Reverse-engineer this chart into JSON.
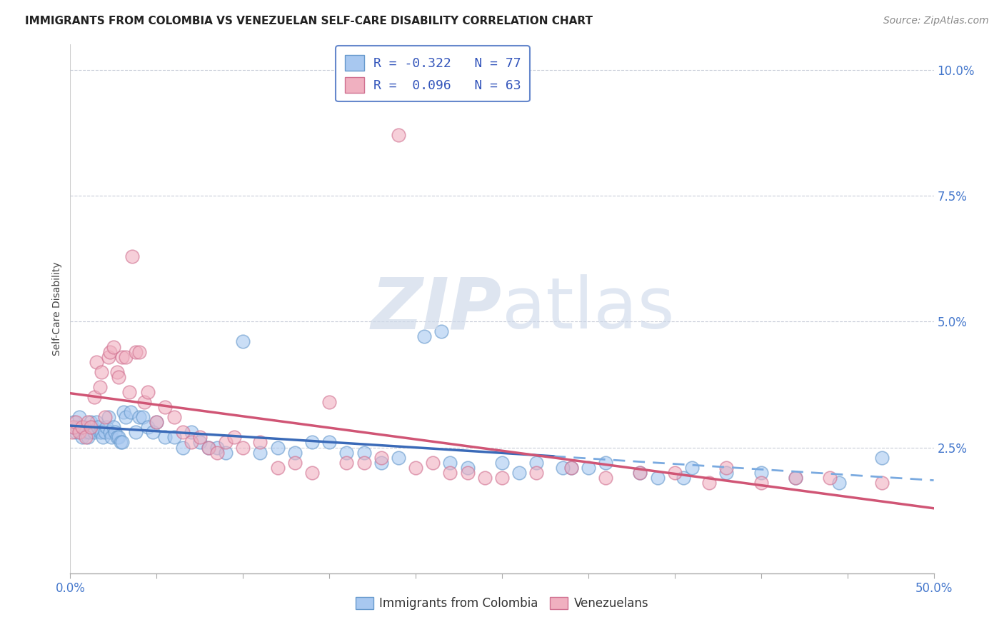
{
  "title": "IMMIGRANTS FROM COLOMBIA VS VENEZUELAN SELF-CARE DISABILITY CORRELATION CHART",
  "source": "Source: ZipAtlas.com",
  "ylabel": "Self-Care Disability",
  "legend_blue_R": -0.322,
  "legend_blue_N": 77,
  "legend_blue_label": "Immigrants from Colombia",
  "legend_pink_R": 0.096,
  "legend_pink_N": 63,
  "legend_pink_label": "Venezuelans",
  "blue_face": "#a8c8f0",
  "blue_edge": "#6699cc",
  "pink_face": "#f0b0c0",
  "pink_edge": "#d07090",
  "blue_line": "#3a6ab8",
  "pink_line": "#d05575",
  "blue_dash": "#7aaae0",
  "watermark_color": "#d0daea",
  "background": "#ffffff",
  "xlim": [
    0,
    50
  ],
  "ylim": [
    0,
    10.5
  ],
  "blue_x": [
    0.1,
    0.2,
    0.3,
    0.4,
    0.5,
    0.6,
    0.7,
    0.8,
    0.9,
    1.0,
    1.1,
    1.2,
    1.3,
    1.4,
    1.5,
    1.6,
    1.7,
    1.8,
    1.9,
    2.0,
    2.1,
    2.2,
    2.3,
    2.4,
    2.5,
    2.6,
    2.7,
    2.8,
    2.9,
    3.0,
    3.1,
    3.2,
    3.5,
    3.8,
    4.0,
    4.2,
    4.5,
    4.8,
    5.0,
    5.5,
    6.0,
    6.5,
    7.0,
    7.5,
    8.0,
    8.5,
    9.0,
    10.0,
    11.0,
    12.0,
    13.0,
    14.0,
    15.0,
    16.0,
    17.0,
    18.0,
    19.0,
    20.5,
    21.5,
    22.0,
    23.0,
    25.0,
    27.0,
    30.0,
    33.0,
    35.5,
    38.0,
    40.0,
    42.0,
    44.5,
    47.0,
    29.0,
    31.0,
    36.0,
    26.0,
    28.5,
    34.0
  ],
  "blue_y": [
    2.9,
    3.0,
    2.8,
    2.9,
    3.1,
    2.8,
    2.7,
    2.9,
    2.8,
    2.7,
    2.8,
    3.0,
    2.9,
    2.8,
    3.0,
    2.9,
    2.8,
    2.8,
    2.7,
    2.8,
    2.9,
    3.1,
    2.8,
    2.7,
    2.9,
    2.8,
    2.7,
    2.7,
    2.6,
    2.6,
    3.2,
    3.1,
    3.2,
    2.8,
    3.1,
    3.1,
    2.9,
    2.8,
    3.0,
    2.7,
    2.7,
    2.5,
    2.8,
    2.6,
    2.5,
    2.5,
    2.4,
    4.6,
    2.4,
    2.5,
    2.4,
    2.6,
    2.6,
    2.4,
    2.4,
    2.2,
    2.3,
    4.7,
    4.8,
    2.2,
    2.1,
    2.2,
    2.2,
    2.1,
    2.0,
    1.9,
    2.0,
    2.0,
    1.9,
    1.8,
    2.3,
    2.1,
    2.2,
    2.1,
    2.0,
    2.1,
    1.9
  ],
  "pink_x": [
    0.1,
    0.2,
    0.3,
    0.5,
    0.7,
    0.9,
    1.0,
    1.2,
    1.4,
    1.5,
    1.7,
    1.8,
    2.0,
    2.2,
    2.3,
    2.5,
    2.7,
    2.8,
    3.0,
    3.2,
    3.4,
    3.6,
    3.8,
    4.0,
    4.3,
    4.5,
    5.0,
    5.5,
    6.0,
    6.5,
    7.0,
    7.5,
    8.0,
    8.5,
    9.0,
    9.5,
    10.0,
    11.0,
    12.0,
    13.0,
    14.0,
    15.0,
    16.0,
    17.0,
    18.0,
    19.0,
    20.0,
    21.0,
    22.0,
    23.0,
    24.0,
    25.0,
    27.0,
    29.0,
    31.0,
    33.0,
    35.0,
    37.0,
    38.0,
    40.0,
    42.0,
    44.0,
    47.0
  ],
  "pink_y": [
    2.8,
    2.9,
    3.0,
    2.8,
    2.9,
    2.7,
    3.0,
    2.9,
    3.5,
    4.2,
    3.7,
    4.0,
    3.1,
    4.3,
    4.4,
    4.5,
    4.0,
    3.9,
    4.3,
    4.3,
    3.6,
    6.3,
    4.4,
    4.4,
    3.4,
    3.6,
    3.0,
    3.3,
    3.1,
    2.8,
    2.6,
    2.7,
    2.5,
    2.4,
    2.6,
    2.7,
    2.5,
    2.6,
    2.1,
    2.2,
    2.0,
    3.4,
    2.2,
    2.2,
    2.3,
    8.7,
    2.1,
    2.2,
    2.0,
    2.0,
    1.9,
    1.9,
    2.0,
    2.1,
    1.9,
    2.0,
    2.0,
    1.8,
    2.1,
    1.8,
    1.9,
    1.9,
    1.8
  ],
  "blue_solid_xmax": 28.0,
  "pink_outlier_x": 19.0,
  "pink_outlier_y": 8.7
}
